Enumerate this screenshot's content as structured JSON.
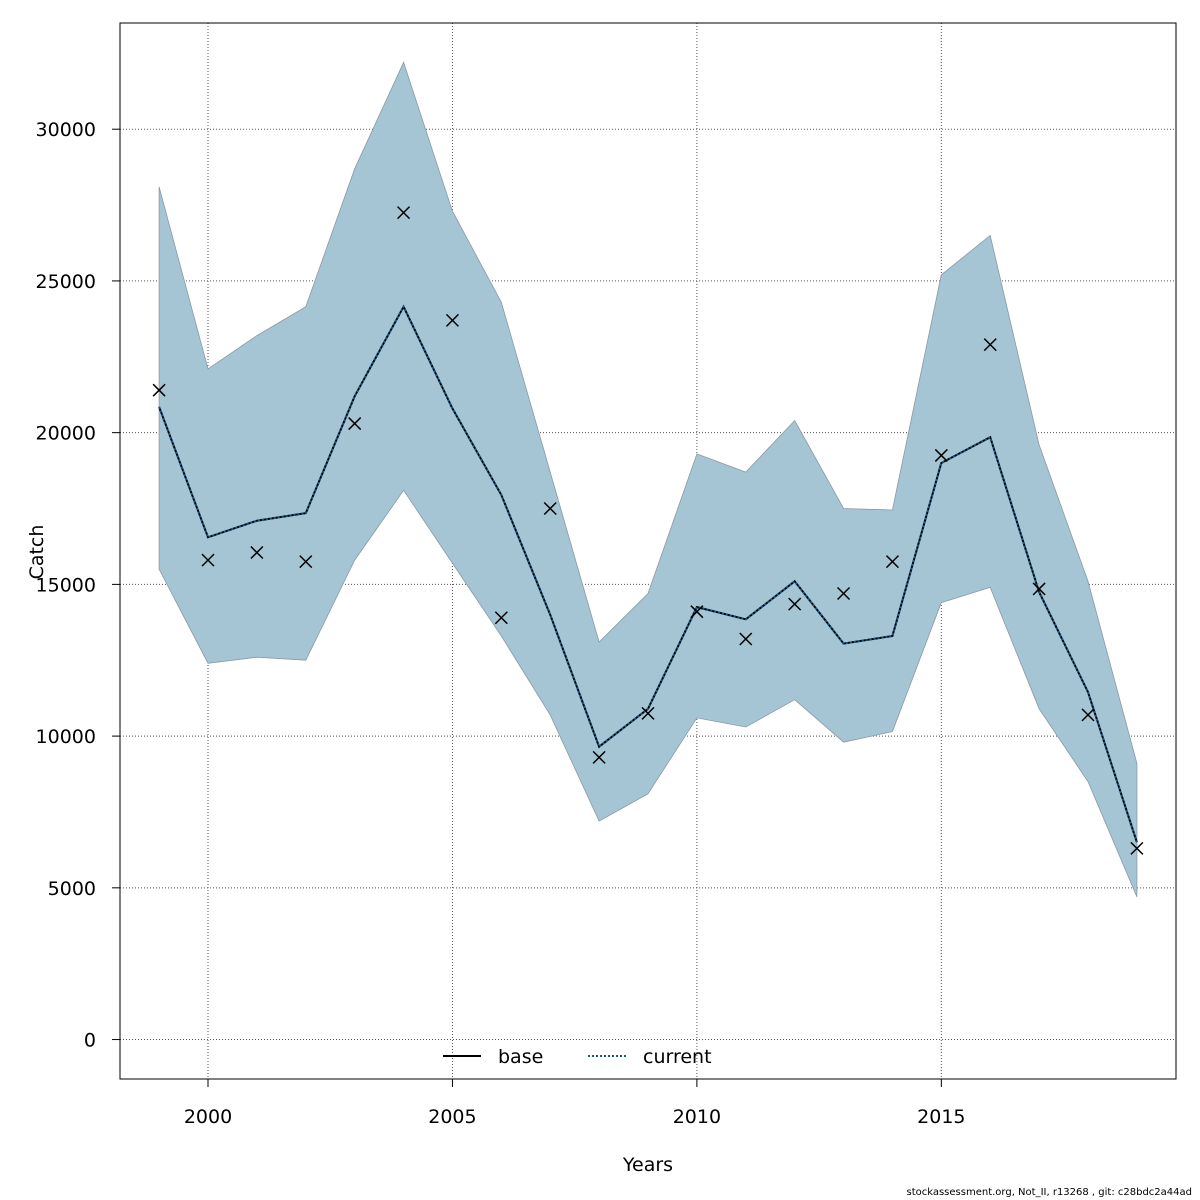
{
  "chart_data": {
    "type": "line",
    "title": "",
    "xlabel": "Years",
    "ylabel": "Catch",
    "xlim": [
      1998.2,
      2019.8
    ],
    "ylim": [
      -1300,
      33500
    ],
    "xticks": [
      2000,
      2005,
      2010,
      2015
    ],
    "yticks": [
      0,
      5000,
      10000,
      15000,
      20000,
      25000,
      30000
    ],
    "grid": true,
    "legend_position": "bottom-center",
    "x": [
      1999,
      2000,
      2001,
      2002,
      2003,
      2004,
      2005,
      2006,
      2007,
      2008,
      2009,
      2010,
      2011,
      2012,
      2013,
      2014,
      2015,
      2016,
      2017,
      2018,
      2019
    ],
    "band": {
      "color": "#a5c4d4",
      "upper": [
        28100,
        22100,
        23200,
        24150,
        28700,
        32200,
        27300,
        24300,
        18700,
        13100,
        14700,
        19300,
        18700,
        20400,
        17500,
        17450,
        25200,
        26500,
        19600,
        15100,
        9100
      ],
      "lower": [
        15500,
        12400,
        12600,
        12500,
        15800,
        18100,
        15700,
        13300,
        10700,
        7200,
        8100,
        10600,
        10300,
        11200,
        9800,
        10150,
        14400,
        14900,
        10900,
        8500,
        4700
      ]
    },
    "observed": {
      "marker": "x",
      "values": [
        21400,
        15800,
        16050,
        15750,
        20300,
        27250,
        23700,
        13900,
        17500,
        9300,
        10750,
        14100,
        13200,
        14350,
        14700,
        15750,
        19250,
        22900,
        14850,
        10700,
        6300
      ]
    },
    "series": [
      {
        "name": "base",
        "style": "solid",
        "color": "#000000",
        "values": [
          20850,
          16550,
          17100,
          17350,
          21200,
          24150,
          20800,
          17950,
          14000,
          9650,
          10900,
          14250,
          13850,
          15100,
          13050,
          13300,
          19000,
          19850,
          14750,
          11450,
          6500
        ]
      },
      {
        "name": "current",
        "style": "dotted",
        "color": "#1a5a8a",
        "values": [
          20850,
          16550,
          17100,
          17350,
          21200,
          24150,
          20800,
          17950,
          14000,
          9650,
          10900,
          14250,
          13850,
          15100,
          13050,
          13300,
          19000,
          19850,
          14750,
          11450,
          6500
        ]
      }
    ]
  },
  "footer": "stockassessment.org, Not_II, r13268 , git: c28bdc2a44ad"
}
